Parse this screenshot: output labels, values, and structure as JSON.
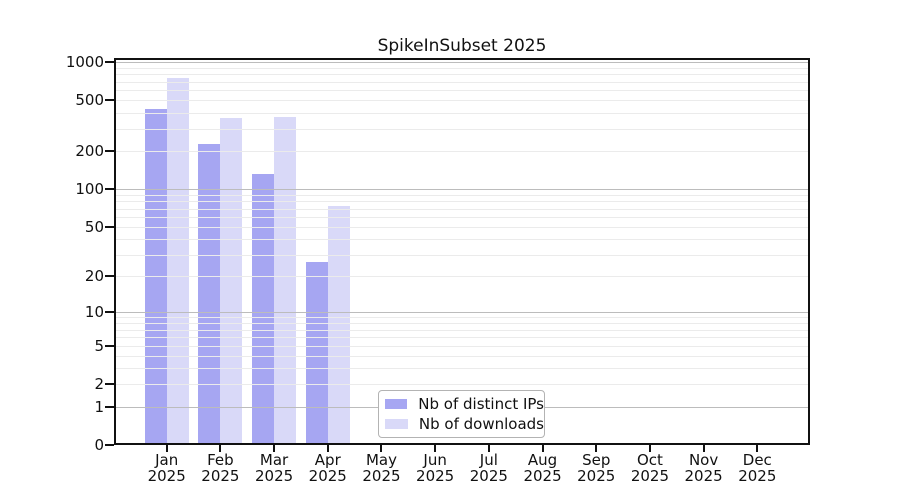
{
  "chart_data": {
    "type": "bar",
    "title": "SpikeInSubset 2025",
    "categories": [
      "Jan",
      "Feb",
      "Mar",
      "Apr",
      "May",
      "Jun",
      "Jul",
      "Aug",
      "Sep",
      "Oct",
      "Nov",
      "Dec"
    ],
    "year_label": "2025",
    "series": [
      {
        "name": "Nb of distinct IPs",
        "color": "#a6a6f2",
        "values": [
          430,
          228,
          132,
          26,
          0,
          0,
          0,
          0,
          0,
          0,
          0,
          0
        ]
      },
      {
        "name": "Nb of downloads",
        "color": "#d9d9f8",
        "values": [
          750,
          361,
          370,
          74,
          0,
          0,
          0,
          0,
          0,
          0,
          0,
          0
        ]
      }
    ],
    "xlabel": "",
    "ylabel": "",
    "y_scale": "log10(value+1)",
    "y_ticks": [
      0,
      1,
      2,
      5,
      10,
      20,
      50,
      100,
      200,
      500,
      1000
    ],
    "ylim": [
      0,
      1076
    ],
    "grid": "horizontal minor and major gridlines drawn over bars",
    "legend_position": "lower center"
  },
  "colors": {
    "background": "#ffffff",
    "grid_minor": "#ebebeb",
    "grid_major": "#bcbcbc",
    "axis": "#111111",
    "text": "#111111",
    "legend_border": "#b3b3b3"
  }
}
